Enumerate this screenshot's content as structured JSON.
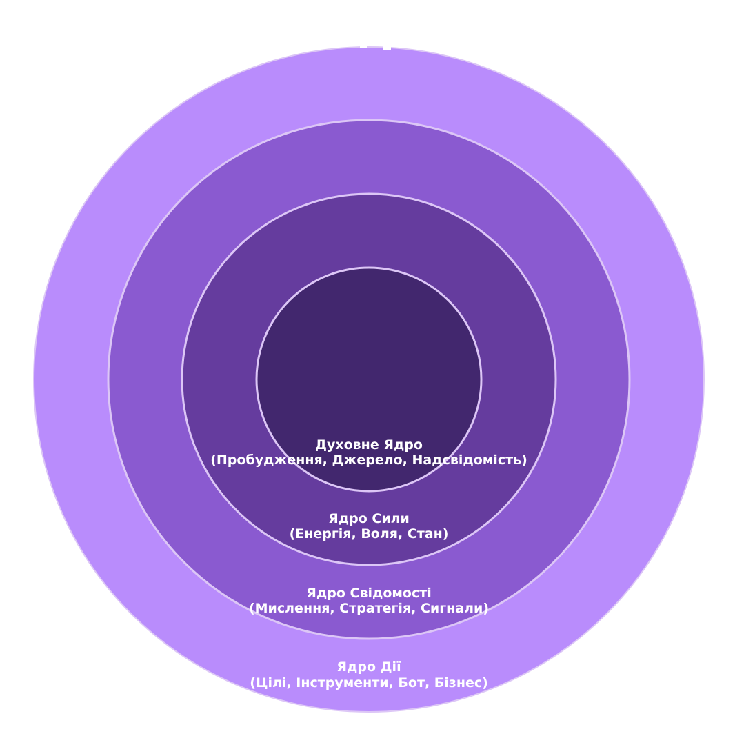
{
  "diagram": {
    "title": "",
    "layers": [
      {
        "id": "action",
        "title": "Ядро Дії",
        "subtitle": "(Цілі, Інструменти, Бот, Бізнес)",
        "color": "#b98cfc"
      },
      {
        "id": "consciousness",
        "title": "Ядро Свідомості",
        "subtitle": "(Мислення, Стратегія, Сигнали)",
        "color": "#8a5ad0"
      },
      {
        "id": "power",
        "title": "Ядро Сили",
        "subtitle": "(Енергія, Воля, Стан)",
        "color": "#653c9e"
      },
      {
        "id": "spirit",
        "title": "Духовне Ядро",
        "subtitle": "(Пробудження, Джерело, Надсвідомість)",
        "color": "#42276e"
      }
    ],
    "border_color": "#dcc6f6"
  }
}
